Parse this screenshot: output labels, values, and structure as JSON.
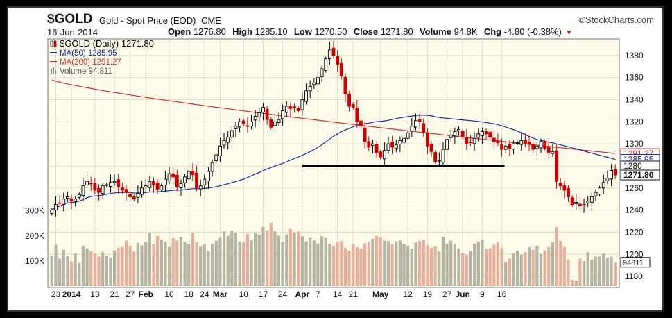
{
  "header": {
    "ticker": "$GOLD",
    "description": "Gold - Spot Price (EOD)",
    "exchange": "CME",
    "brand": "©StockCharts.com",
    "date": "16-Jun-2014",
    "open_label": "Open",
    "open": "1276.80",
    "high_label": "High",
    "high": "1285.10",
    "low_label": "Low",
    "low": "1270.50",
    "close_label": "Close",
    "close": "1271.80",
    "volume_label": "Volume",
    "volume": "94.8K",
    "chg_label": "Chg",
    "chg": "-4.80 (-0.38%)"
  },
  "colors": {
    "up": "#000000",
    "down": "#cc0000",
    "ma50": "#1c2e9c",
    "ma200": "#d03030",
    "vol_up": "#b5b5a5",
    "vol_down": "#e8b09c",
    "background": "#fdfbe9"
  },
  "chart_data": {
    "type": "candlestick",
    "legend": {
      "placement": "top-left",
      "entries": [
        {
          "label": "$GOLD (Daily) 1271.80",
          "color": "#000000"
        },
        {
          "label": "MA(50) 1285.95",
          "color": "#1c2e9c"
        },
        {
          "label": "MA(200) 1291.27",
          "color": "#d03030"
        },
        {
          "label": "Volume 94,811",
          "color": "#888888"
        }
      ]
    },
    "price_axis": {
      "ticks": [
        1180,
        1200,
        1220,
        1240,
        1260,
        1280,
        1300,
        1320,
        1340,
        1360,
        1380
      ],
      "range": [
        1170,
        1395
      ]
    },
    "volume_axis": {
      "ticks": [
        "100K",
        "200K",
        "300K"
      ],
      "tick_values": [
        100000,
        200000,
        300000
      ],
      "max": 360000
    },
    "x_tick_labels": [
      {
        "text": "23",
        "index": 1
      },
      {
        "text": "2014",
        "index": 5,
        "bold": true
      },
      {
        "text": "13",
        "index": 11
      },
      {
        "text": "21",
        "index": 16
      },
      {
        "text": "27",
        "index": 20
      },
      {
        "text": "Feb",
        "index": 24,
        "bold": true
      },
      {
        "text": "10",
        "index": 30
      },
      {
        "text": "18",
        "index": 35
      },
      {
        "text": "24",
        "index": 39
      },
      {
        "text": "Mar",
        "index": 43,
        "bold": true
      },
      {
        "text": "10",
        "index": 49
      },
      {
        "text": "17",
        "index": 54
      },
      {
        "text": "24",
        "index": 59
      },
      {
        "text": "Apr",
        "index": 64,
        "bold": true
      },
      {
        "text": "7",
        "index": 68
      },
      {
        "text": "14",
        "index": 73
      },
      {
        "text": "21",
        "index": 77
      },
      {
        "text": "May",
        "index": 84,
        "bold": true
      },
      {
        "text": "12",
        "index": 91
      },
      {
        "text": "19",
        "index": 96
      },
      {
        "text": "27",
        "index": 101
      },
      {
        "text": "Jun",
        "index": 105,
        "bold": true
      },
      {
        "text": "9",
        "index": 110
      },
      {
        "text": "16",
        "index": 115
      }
    ],
    "price_labels": [
      {
        "text": "1291.27",
        "value": 1291.27,
        "color": "#d03030"
      },
      {
        "text": "1285.95",
        "value": 1285.95,
        "color": "#1c2e9c"
      },
      {
        "text": "1280",
        "value": 1280,
        "color": "#111111"
      },
      {
        "text": "1271.80",
        "value": 1271.8,
        "color": "#111111",
        "bold": true
      }
    ],
    "volume_label": {
      "text": "94811",
      "value": 94811
    },
    "support_line": {
      "value": 1280,
      "from_index": 64,
      "to_index": 115
    },
    "closes": [
      1240,
      1245,
      1246,
      1250,
      1252,
      1248,
      1250,
      1254,
      1262,
      1266,
      1264,
      1258,
      1256,
      1262,
      1263,
      1265,
      1266,
      1261,
      1258,
      1256,
      1252,
      1250,
      1255,
      1260,
      1262,
      1266,
      1263,
      1259,
      1262,
      1268,
      1273,
      1270,
      1261,
      1264,
      1270,
      1275,
      1272,
      1260,
      1262,
      1268,
      1275,
      1283,
      1290,
      1298,
      1303,
      1306,
      1312,
      1316,
      1320,
      1318,
      1316,
      1320,
      1325,
      1328,
      1333,
      1322,
      1315,
      1320,
      1322,
      1330,
      1334,
      1332,
      1333,
      1330,
      1340,
      1348,
      1352,
      1355,
      1360,
      1368,
      1377,
      1385,
      1380,
      1372,
      1362,
      1345,
      1334,
      1333,
      1320,
      1316,
      1302,
      1297,
      1300,
      1292,
      1288,
      1294,
      1300,
      1297,
      1299,
      1303,
      1305,
      1310,
      1316,
      1321,
      1320,
      1310,
      1298,
      1293,
      1284,
      1285,
      1295,
      1304,
      1308,
      1311,
      1313,
      1306,
      1300,
      1301,
      1305,
      1309,
      1311,
      1309,
      1306,
      1302,
      1301,
      1295,
      1298,
      1296,
      1300,
      1301,
      1303,
      1300,
      1300,
      1295,
      1298,
      1302,
      1296,
      1292,
      1293,
      1266,
      1262,
      1258,
      1252,
      1245,
      1247,
      1244,
      1245,
      1248,
      1252,
      1256,
      1260,
      1265,
      1269,
      1276,
      1271.8
    ],
    "volumes": [
      120000,
      165000,
      110000,
      145000,
      120000,
      98000,
      130000,
      92000,
      160000,
      150000,
      140000,
      130000,
      118000,
      135000,
      122000,
      113000,
      142000,
      153000,
      156000,
      182000,
      160000,
      138000,
      172000,
      162000,
      176000,
      210000,
      166000,
      200000,
      185000,
      176000,
      156000,
      191000,
      182000,
      195000,
      176000,
      168000,
      211000,
      175000,
      158000,
      165000,
      141000,
      168000,
      181000,
      192000,
      218000,
      200000,
      222000,
      212000,
      178000,
      175000,
      208000,
      183000,
      210000,
      205000,
      236000,
      222000,
      253000,
      219000,
      201000,
      175000,
      205000,
      228000,
      213000,
      218000,
      198000,
      178000,
      192000,
      182000,
      170000,
      199000,
      192000,
      168000,
      159000,
      175000,
      180000,
      153000,
      142000,
      166000,
      155000,
      150000,
      171000,
      175000,
      189000,
      200000,
      195000,
      181000,
      179000,
      168000,
      178000,
      182000,
      166000,
      160000,
      148000,
      174000,
      179000,
      185000,
      162000,
      152000,
      158000,
      138000,
      196000,
      170000,
      181000,
      167000,
      150000,
      132000,
      125000,
      140000,
      168000,
      177000,
      185000,
      148000,
      150000,
      165000,
      175000,
      152000,
      95000,
      110000,
      130000,
      140000,
      125000,
      135000,
      155000,
      145000,
      160000,
      128000,
      142000,
      156000,
      175000,
      235000,
      180000,
      156000,
      106000,
      25000,
      22000,
      110000,
      100000,
      135000,
      105000,
      118000,
      118000,
      130000,
      112000,
      117000,
      94811
    ]
  }
}
